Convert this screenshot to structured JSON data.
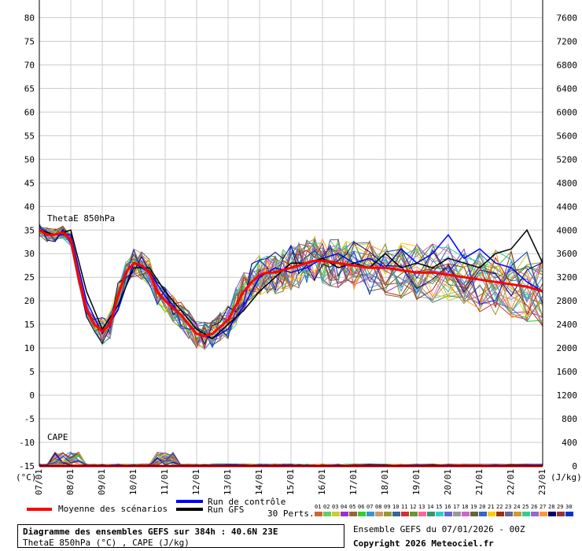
{
  "chart_data": {
    "type": "line",
    "left_axis": {
      "unit": "(°C)",
      "ticks": [
        80,
        75,
        70,
        65,
        60,
        55,
        50,
        45,
        40,
        35,
        30,
        25,
        20,
        15,
        10,
        5,
        0,
        -5,
        -10,
        -15
      ],
      "ylim": [
        -15,
        80
      ]
    },
    "right_axis": {
      "unit": "(J/kg)",
      "ticks": [
        7600,
        7200,
        6800,
        6400,
        6000,
        5600,
        5200,
        4800,
        4400,
        4000,
        3600,
        3200,
        2800,
        2400,
        2000,
        1600,
        1200,
        800,
        400,
        0
      ],
      "ylim": [
        0,
        7600
      ]
    },
    "x_ticks": [
      "07/01",
      "08/01",
      "09/01",
      "10/01",
      "11/01",
      "12/01",
      "13/01",
      "14/01",
      "15/01",
      "16/01",
      "17/01",
      "18/01",
      "19/01",
      "20/01",
      "21/01",
      "22/01",
      "23/01"
    ],
    "x_days": [
      0,
      16
    ],
    "panel_labels": {
      "thetae": "ThetaE 850hPa",
      "cape": "CAPE"
    },
    "mean_series": {
      "name": "Moyenne des scénarios",
      "color": "#ff0000",
      "x": [
        0,
        0.25,
        0.5,
        0.75,
        1,
        1.25,
        1.5,
        1.75,
        2,
        2.25,
        2.5,
        2.75,
        3,
        3.25,
        3.5,
        3.75,
        4,
        4.25,
        4.5,
        4.75,
        5,
        5.25,
        5.5,
        5.75,
        6,
        6.25,
        6.5,
        6.75,
        7,
        7.25,
        7.5,
        7.75,
        8,
        8.25,
        8.5,
        8.75,
        9,
        9.25,
        9.5,
        9.75,
        10,
        10.5,
        11,
        11.5,
        12,
        12.5,
        13,
        13.5,
        14,
        14.5,
        15,
        15.5,
        16
      ],
      "values": [
        35,
        34,
        34,
        34.5,
        33,
        25,
        18,
        15,
        13.5,
        15,
        21,
        26,
        28,
        27.5,
        26,
        22,
        20,
        18.5,
        17,
        15,
        13,
        12.5,
        13,
        14.5,
        16,
        19,
        22,
        24,
        25.5,
        26,
        26,
        26.5,
        27,
        27.5,
        28,
        28.5,
        28.5,
        28.3,
        28,
        27.7,
        27.5,
        27,
        27,
        26.5,
        26,
        26,
        25.5,
        25,
        24.5,
        24,
        23.5,
        23,
        22
      ]
    },
    "control_run": {
      "name": "Run de contrôle",
      "color": "#0000ff",
      "x": [
        0,
        0.5,
        1,
        1.5,
        2,
        2.5,
        3,
        3.5,
        4,
        4.5,
        5,
        5.5,
        6,
        6.5,
        7,
        7.5,
        8,
        8.5,
        9,
        9.5,
        10,
        10.5,
        11,
        11.5,
        12,
        12.5,
        13,
        13.5,
        14,
        14.5,
        15,
        15.5,
        16
      ],
      "values": [
        35,
        34,
        34,
        20,
        13,
        18,
        28,
        26,
        21,
        17,
        13,
        12,
        14,
        19,
        25,
        27,
        26,
        27,
        29,
        30,
        28,
        29,
        27,
        31,
        28,
        30,
        34,
        29,
        31,
        28,
        27,
        24,
        22
      ]
    },
    "gfs_run": {
      "name": "Run GFS",
      "color": "#000000",
      "x": [
        0,
        0.5,
        1,
        1.5,
        2,
        2.5,
        3,
        3.5,
        4,
        4.5,
        5,
        5.5,
        6,
        6.5,
        7,
        7.5,
        8,
        8.5,
        9,
        9.5,
        10,
        10.5,
        11,
        11.5,
        12,
        12.5,
        13,
        13.5,
        14,
        14.5,
        15,
        15.5,
        16
      ],
      "values": [
        35,
        34,
        35,
        22,
        14,
        19,
        27,
        27,
        22,
        18,
        14,
        12,
        15,
        18,
        22,
        25,
        28,
        28,
        29,
        27,
        28,
        27,
        30,
        27,
        28,
        27,
        29,
        28,
        27,
        30,
        31,
        35,
        28
      ]
    },
    "perturbations": {
      "label": "30 Perts.",
      "count": 30,
      "ids": [
        "01",
        "02",
        "03",
        "04",
        "05",
        "06",
        "07",
        "08",
        "09",
        "10",
        "11",
        "12",
        "13",
        "14",
        "15",
        "16",
        "17",
        "18",
        "19",
        "20",
        "21",
        "22",
        "23",
        "24",
        "25",
        "26",
        "27",
        "28",
        "29",
        "30"
      ],
      "colors": [
        "#cc6633",
        "#66cc66",
        "#cccc33",
        "#9933cc",
        "#996633",
        "#33cc33",
        "#3399cc",
        "#cc9966",
        "#999933",
        "#336699",
        "#cc3333",
        "#669933",
        "#ff6699",
        "#339966",
        "#33cccc",
        "#6666cc",
        "#999999",
        "#cc66cc",
        "#666633",
        "#3366cc",
        "#ffcc00",
        "#993300",
        "#666699",
        "#cc9933",
        "#33cc99",
        "#9966cc",
        "#ff9933",
        "#000066",
        "#993333",
        "#0033cc"
      ]
    },
    "legend": {
      "mean": "Moyenne des scénarios",
      "control": "Run de contrôle",
      "gfs": "Run GFS"
    }
  },
  "footer": {
    "title_line1": "Diagramme des ensembles GEFS sur 384h : 40.6N 23E",
    "title_line2": "ThetaE 850hPa (°C) , CAPE (J/kg)",
    "run_info": "Ensemble GEFS du 07/01/2026 - 00Z",
    "copyright": "Copyright 2026 Meteociel.fr"
  }
}
